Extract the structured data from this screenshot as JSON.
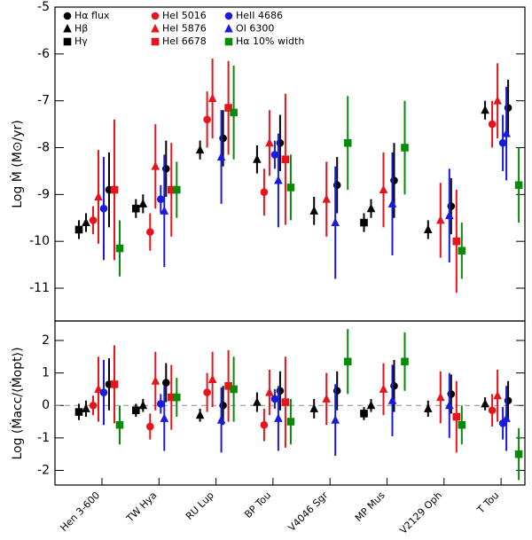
{
  "chart_data": [
    {
      "type": "scatter",
      "ylabel": "Log Ṁ (M⊙/yr)",
      "ylim": [
        -11.7,
        -5
      ],
      "yticks": [
        -5,
        -6,
        -7,
        -8,
        -9,
        -10,
        -11
      ],
      "series": [
        {
          "name": "Hα flux",
          "color": "#000000",
          "marker": "circle",
          "values": [
            -8.9,
            -8.45,
            -7.8,
            -7.9,
            -8.8,
            -8.7,
            -9.25,
            -7.15
          ],
          "errors": [
            0.8,
            0.6,
            0.6,
            0.6,
            0.6,
            0.8,
            0.6,
            0.6
          ]
        },
        {
          "name": "Hβ",
          "color": "#000000",
          "marker": "triangle",
          "values": [
            -9.6,
            -9.2,
            -8.05,
            -8.25,
            -9.35,
            -9.3,
            -9.75,
            -7.2
          ],
          "errors": [
            0.2,
            0.2,
            0.2,
            0.3,
            0.3,
            0.2,
            0.2,
            0.2
          ]
        },
        {
          "name": "Hγ",
          "color": "#000000",
          "marker": "square",
          "values": [
            -9.75,
            -9.3,
            null,
            null,
            null,
            -9.6,
            null,
            null
          ],
          "errors": [
            0.2,
            0.2,
            null,
            null,
            null,
            0.2,
            null,
            null
          ]
        },
        {
          "name": "HeI 5016",
          "color": "#e8141c",
          "marker": "circle",
          "values": [
            -9.55,
            -9.8,
            -7.4,
            -8.95,
            null,
            null,
            null,
            -7.5
          ],
          "errors": [
            0.3,
            0.4,
            0.6,
            0.5,
            null,
            null,
            null,
            0.5
          ]
        },
        {
          "name": "HeI 5876",
          "color": "#e8141c",
          "marker": "triangle",
          "values": [
            -9.05,
            -8.4,
            -6.95,
            -7.9,
            -9.1,
            -8.9,
            -9.55,
            -7.0
          ],
          "errors": [
            1.0,
            0.9,
            0.85,
            0.7,
            0.8,
            0.8,
            0.8,
            0.8
          ]
        },
        {
          "name": "HeI 6678",
          "color": "#e8141c",
          "marker": "square",
          "values": [
            -8.9,
            -8.9,
            -7.15,
            -8.25,
            null,
            null,
            -10.0,
            null
          ],
          "errors": [
            1.5,
            1.0,
            1.0,
            1.4,
            null,
            null,
            1.1,
            null
          ]
        },
        {
          "name": "HeII 4686",
          "color": "#1a1adc",
          "marker": "circle",
          "values": [
            -9.3,
            -9.1,
            null,
            -8.15,
            null,
            null,
            null,
            -7.9
          ],
          "errors": [
            1.1,
            0.3,
            null,
            0.3,
            null,
            null,
            null,
            0.6
          ]
        },
        {
          "name": "OI 6300",
          "color": "#1a1adc",
          "marker": "triangle",
          "values": [
            null,
            -9.35,
            -8.2,
            -8.7,
            -9.6,
            -9.2,
            -9.45,
            -7.7
          ],
          "errors": [
            null,
            1.2,
            1.0,
            1.0,
            1.2,
            1.1,
            1.0,
            1.0
          ]
        },
        {
          "name": "Hα 10% width",
          "color": "#0a8a0a",
          "marker": "square",
          "values": [
            -10.15,
            -8.9,
            -7.25,
            -8.85,
            -7.9,
            -8.0,
            -10.2,
            -8.8
          ],
          "errors": [
            0.6,
            0.6,
            1.0,
            0.7,
            1.0,
            1.0,
            0.6,
            0.8
          ]
        }
      ]
    },
    {
      "type": "scatter",
      "ylabel": "Log (Ṁacc/⟨Ṁopt⟩)",
      "categories": [
        "Hen 3-600",
        "TW Hya",
        "RU Lup",
        "BP Tou",
        "V4046 Sgr",
        "MP Mus",
        "V2129 Oph",
        "T Tou"
      ],
      "ylim": [
        -2.45,
        2.6
      ],
      "yticks": [
        2,
        1,
        0,
        -1,
        -2
      ],
      "hline": 0,
      "series": [
        {
          "color": "#000000",
          "marker": "circle",
          "values": [
            0.65,
            0.7,
            0.0,
            0.45,
            0.45,
            0.6,
            0.35,
            0.15
          ],
          "errors": [
            0.8,
            0.6,
            0.6,
            0.6,
            0.6,
            0.8,
            0.6,
            0.6
          ]
        },
        {
          "color": "#000000",
          "marker": "triangle",
          "values": [
            -0.1,
            0.0,
            -0.3,
            0.1,
            -0.1,
            0.0,
            -0.1,
            0.05
          ],
          "errors": [
            0.25,
            0.2,
            0.2,
            0.3,
            0.3,
            0.2,
            0.25,
            0.2
          ]
        },
        {
          "color": "#000000",
          "marker": "square",
          "values": [
            -0.2,
            -0.15,
            null,
            null,
            null,
            -0.25,
            null,
            null
          ],
          "errors": [
            0.25,
            0.2,
            null,
            null,
            null,
            0.2,
            null,
            null
          ]
        },
        {
          "color": "#e8141c",
          "marker": "circle",
          "values": [
            0.0,
            -0.65,
            0.4,
            -0.6,
            null,
            null,
            null,
            -0.15
          ],
          "errors": [
            0.3,
            0.4,
            0.6,
            0.5,
            null,
            null,
            null,
            0.5
          ]
        },
        {
          "color": "#e8141c",
          "marker": "triangle",
          "values": [
            0.5,
            0.75,
            0.8,
            0.4,
            0.2,
            0.5,
            0.25,
            0.3
          ],
          "errors": [
            1.0,
            0.9,
            0.85,
            0.7,
            0.8,
            0.8,
            0.8,
            0.8
          ]
        },
        {
          "color": "#e8141c",
          "marker": "square",
          "values": [
            0.65,
            0.25,
            0.6,
            0.1,
            null,
            null,
            -0.35,
            null
          ],
          "errors": [
            1.2,
            1.0,
            1.1,
            1.4,
            null,
            null,
            1.1,
            null
          ]
        },
        {
          "color": "#1a1adc",
          "marker": "circle",
          "values": [
            0.4,
            0.05,
            null,
            0.2,
            null,
            null,
            null,
            -0.55
          ],
          "errors": [
            1.0,
            0.3,
            null,
            0.3,
            null,
            null,
            null,
            0.5
          ]
        },
        {
          "color": "#1a1adc",
          "marker": "triangle",
          "values": [
            null,
            -0.4,
            -0.45,
            -0.4,
            -0.45,
            0.15,
            0.0,
            -0.4
          ],
          "errors": [
            null,
            1.0,
            1.0,
            1.0,
            1.1,
            1.1,
            1.0,
            1.0
          ]
        },
        {
          "color": "#0a8a0a",
          "marker": "square",
          "values": [
            -0.6,
            0.25,
            0.5,
            -0.5,
            1.35,
            1.35,
            -0.6,
            -1.5
          ],
          "errors": [
            0.6,
            0.6,
            1.0,
            0.7,
            1.0,
            0.9,
            0.6,
            0.8
          ]
        }
      ]
    }
  ]
}
